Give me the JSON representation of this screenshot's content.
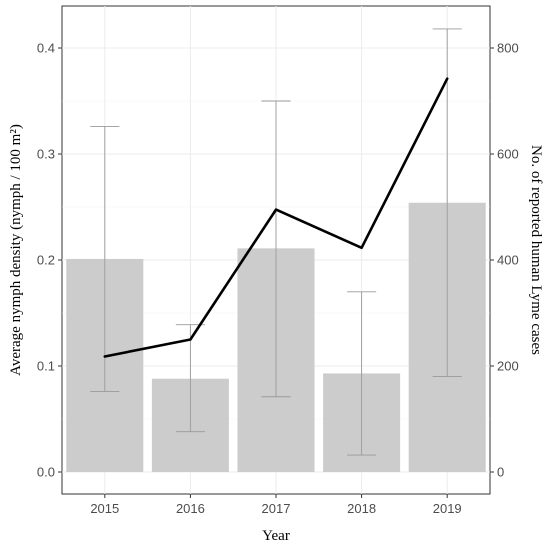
{
  "chart_data": {
    "type": "bar",
    "categories": [
      "2015",
      "2016",
      "2017",
      "2018",
      "2019"
    ],
    "series": [
      {
        "kind": "bar",
        "axis": "left",
        "values": [
          0.201,
          0.088,
          0.211,
          0.093,
          0.254
        ],
        "error_low": [
          0.076,
          0.038,
          0.071,
          0.016,
          0.09
        ],
        "error_high": [
          0.326,
          0.139,
          0.35,
          0.17,
          0.418
        ],
        "color": "#cccccc",
        "error_color": "#9a9a9a"
      },
      {
        "kind": "line",
        "axis": "right",
        "values": [
          218,
          250,
          495,
          423,
          742
        ],
        "color": "#000000"
      }
    ],
    "xlabel": "Year",
    "ylabel": "Average nymph density (nymph / 100 m²)",
    "ylabel_right": "No. of reported human Lyme cases",
    "ylim": [
      0,
      0.4
    ],
    "yticks": [
      "0.0",
      "0.1",
      "0.2",
      "0.3",
      "0.4"
    ],
    "ylim_right": [
      0,
      800
    ],
    "yticks_right": [
      "0",
      "200",
      "400",
      "600",
      "800"
    ],
    "grid": true,
    "legend": "none"
  }
}
